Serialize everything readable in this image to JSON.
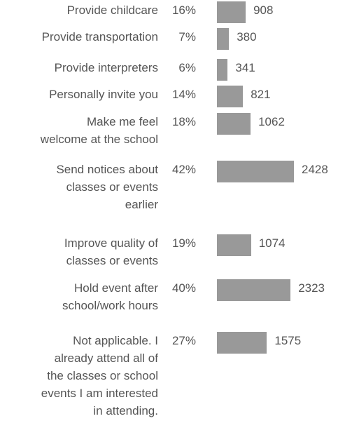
{
  "chart_data": {
    "type": "bar",
    "orientation": "horizontal",
    "bar_color": "#999999",
    "text_color": "#555555",
    "categories": [
      "Provide childcare",
      "Provide transportation",
      "Provide interpreters",
      "Personally invite you",
      "Make me feel\nwelcome at the school",
      "Send notices about\nclasses or events\nearlier",
      "Improve quality of\nclasses or events",
      "Hold event after\nschool/work hours",
      "Not applicable. I\nalready attend all of\nthe classes or school\nevents I am interested\nin attending."
    ],
    "percent_labels": [
      "16%",
      "7%",
      "6%",
      "14%",
      "18%",
      "42%",
      "19%",
      "40%",
      "27%"
    ],
    "values": [
      908,
      380,
      341,
      821,
      1062,
      2428,
      1074,
      2323,
      1575
    ]
  }
}
